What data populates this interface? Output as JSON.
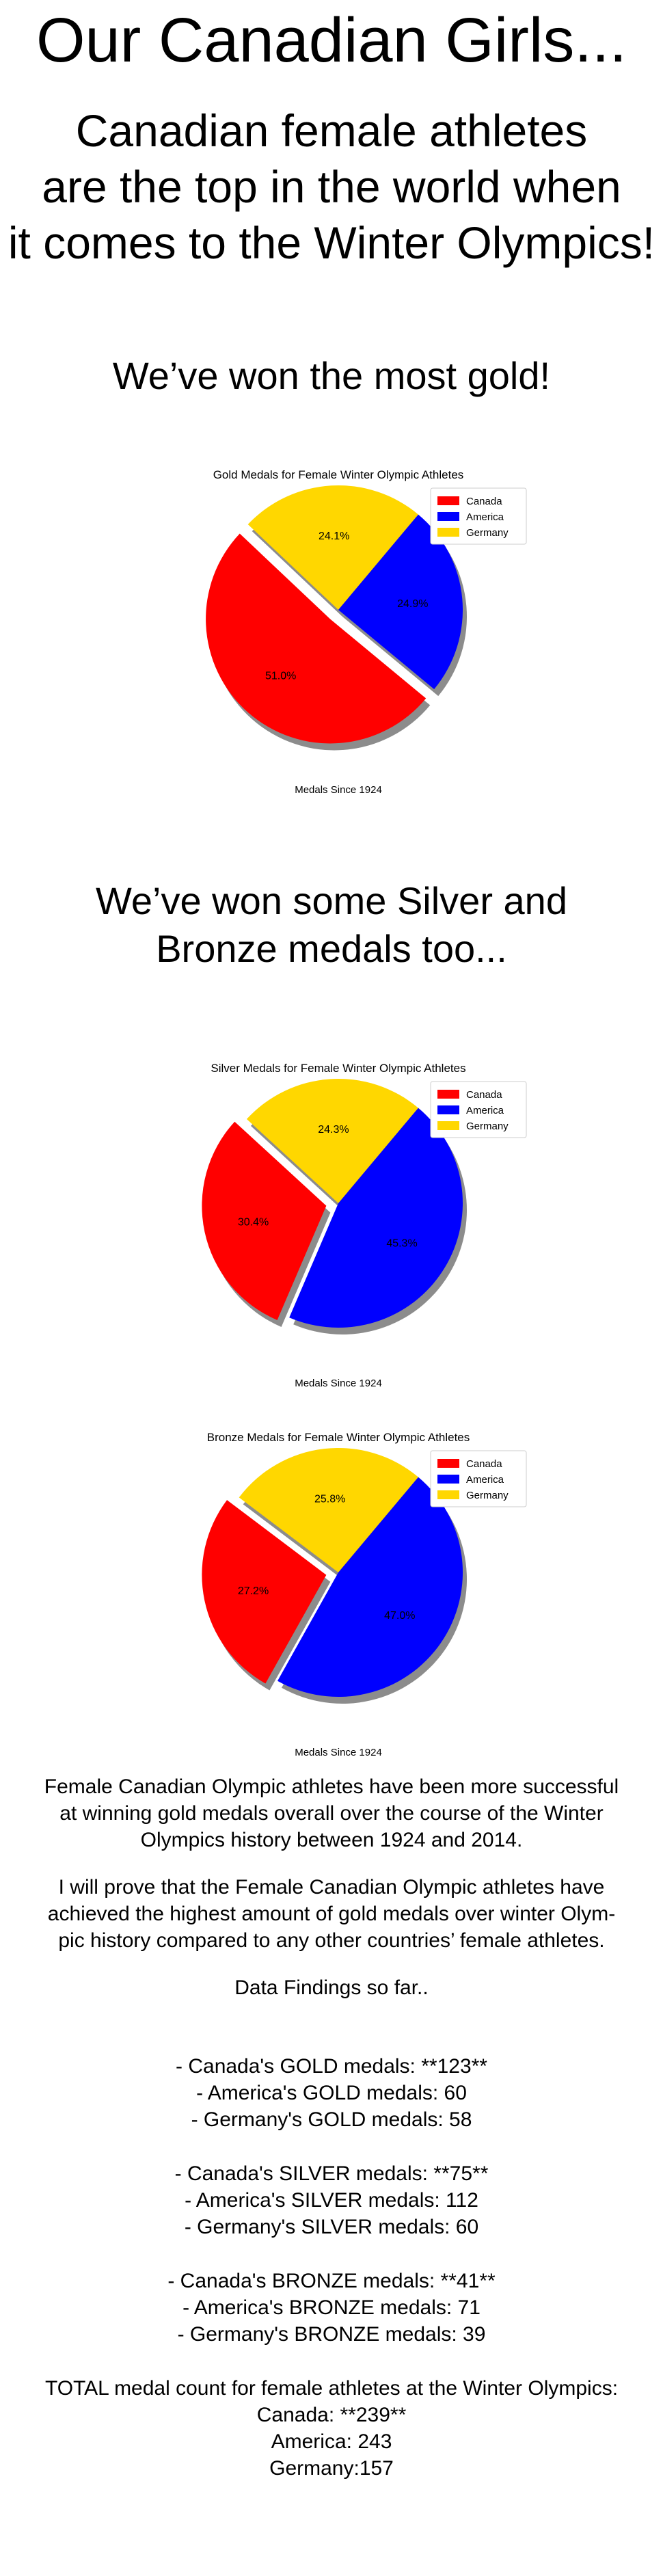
{
  "page": {
    "title": "Our Canadian Girls...",
    "subtitle_lines": [
      "Canadian female athletes",
      "are the top in the world when",
      "it comes to the Winter Olympics!"
    ],
    "gold_heading": "We’ve won the most gold!",
    "silver_bronze_heading_lines": [
      "We’ve won some Silver and",
      "Bronze medals too..."
    ]
  },
  "colors": {
    "Canada": "#ff0000",
    "America": "#0000ff",
    "Germany": "#ffd700",
    "shadow": "#8c8c8c"
  },
  "chart_data": [
    {
      "type": "pie",
      "title": "Gold Medals for Female Winter Olympic Athletes",
      "xlabel": "Medals Since 1924",
      "categories": [
        "Canada",
        "America",
        "Germany"
      ],
      "values": [
        123,
        60,
        58
      ],
      "labels": [
        "51.0%",
        "24.9%",
        "24.1%"
      ],
      "exploded": "Canada",
      "legend": "top-right",
      "shadow": true
    },
    {
      "type": "pie",
      "title": "Silver Medals for Female Winter Olympic Athletes",
      "xlabel": "Medals Since 1924",
      "categories": [
        "Canada",
        "America",
        "Germany"
      ],
      "values": [
        75,
        112,
        60
      ],
      "labels": [
        "30.4%",
        "45.3%",
        "24.3%"
      ],
      "exploded": "Canada",
      "legend": "top-right",
      "shadow": true
    },
    {
      "type": "pie",
      "title": "Bronze Medals for Female Winter Olympic Athletes",
      "xlabel": "Medals Since 1924",
      "categories": [
        "Canada",
        "America",
        "Germany"
      ],
      "values": [
        41,
        71,
        39
      ],
      "labels": [
        "27.2%",
        "47.0%",
        "25.8%"
      ],
      "exploded": "Canada",
      "legend": "top-right",
      "shadow": true
    }
  ],
  "findings": {
    "paragraph1": [
      "Female Canadian Olympic athletes have been more successful",
      "at winning gold medals overall over the course of the Winter",
      "Olympics history between 1924 and 2014."
    ],
    "paragraph2": [
      "I will prove that the Female Canadian Olympic athletes have",
      "achieved the highest amount of gold medals over winter Olym-",
      "pic history compared to any other countries’ female athletes."
    ],
    "data_heading": "Data Findings so far..",
    "gold_lines": [
      "- Canada's GOLD medals: **123**",
      "- America's GOLD medals: 60",
      "- Germany's GOLD medals: 58"
    ],
    "silver_lines": [
      "- Canada's SILVER medals: **75**",
      "- America's SILVER medals: 112",
      "- Germany's SILVER medals: 60"
    ],
    "bronze_lines": [
      "- Canada's BRONZE medals: **41**",
      "- America's BRONZE medals: 71",
      "- Germany's BRONZE medals: 39"
    ],
    "total_lines": [
      "TOTAL medal count for female athletes at the Winter Olympics:",
      "Canada: **239**",
      "America: 243",
      "Germany:157"
    ]
  }
}
